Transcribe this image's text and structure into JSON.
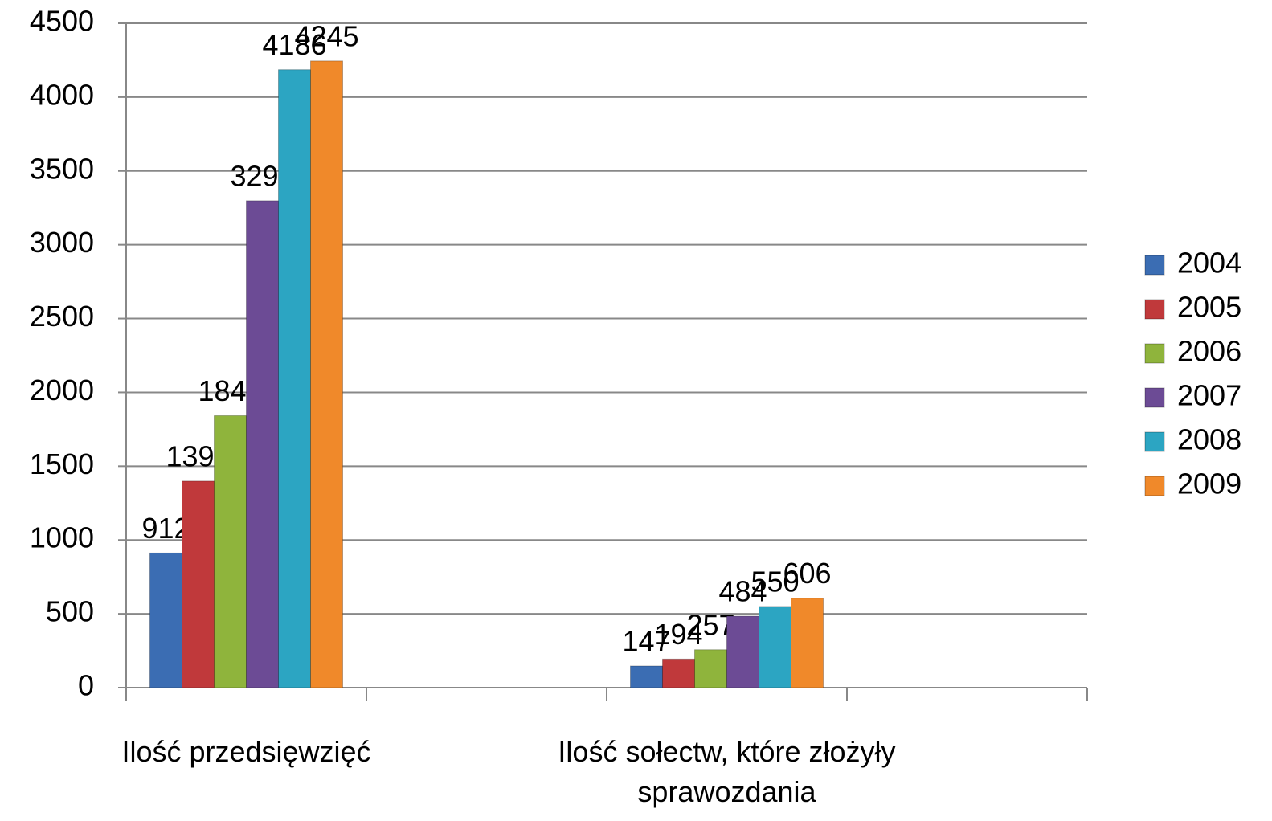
{
  "chart_data": {
    "type": "bar",
    "categories": [
      "Ilość przedsięwzięć",
      null,
      "Ilość sołectw, które złożyły sprawozdania",
      null
    ],
    "series": [
      {
        "name": "2004",
        "color": "#3b6db3",
        "values": [
          912,
          null,
          147,
          null
        ]
      },
      {
        "name": "2005",
        "color": "#c0393b",
        "values": [
          1399,
          null,
          194,
          null
        ]
      },
      {
        "name": "2006",
        "color": "#8fb43c",
        "values": [
          1842,
          null,
          257,
          null
        ]
      },
      {
        "name": "2007",
        "color": "#6c4b95",
        "values": [
          3298,
          null,
          484,
          null
        ]
      },
      {
        "name": "2008",
        "color": "#2ca5c2",
        "values": [
          4186,
          null,
          550,
          null
        ]
      },
      {
        "name": "2009",
        "color": "#f0892a",
        "values": [
          4245,
          null,
          606,
          null
        ]
      }
    ],
    "ylim": [
      0,
      4500
    ],
    "yticks": [
      0,
      500,
      1000,
      1500,
      2000,
      2500,
      3000,
      3500,
      4000,
      4500
    ],
    "grid": true,
    "legend": "right"
  }
}
